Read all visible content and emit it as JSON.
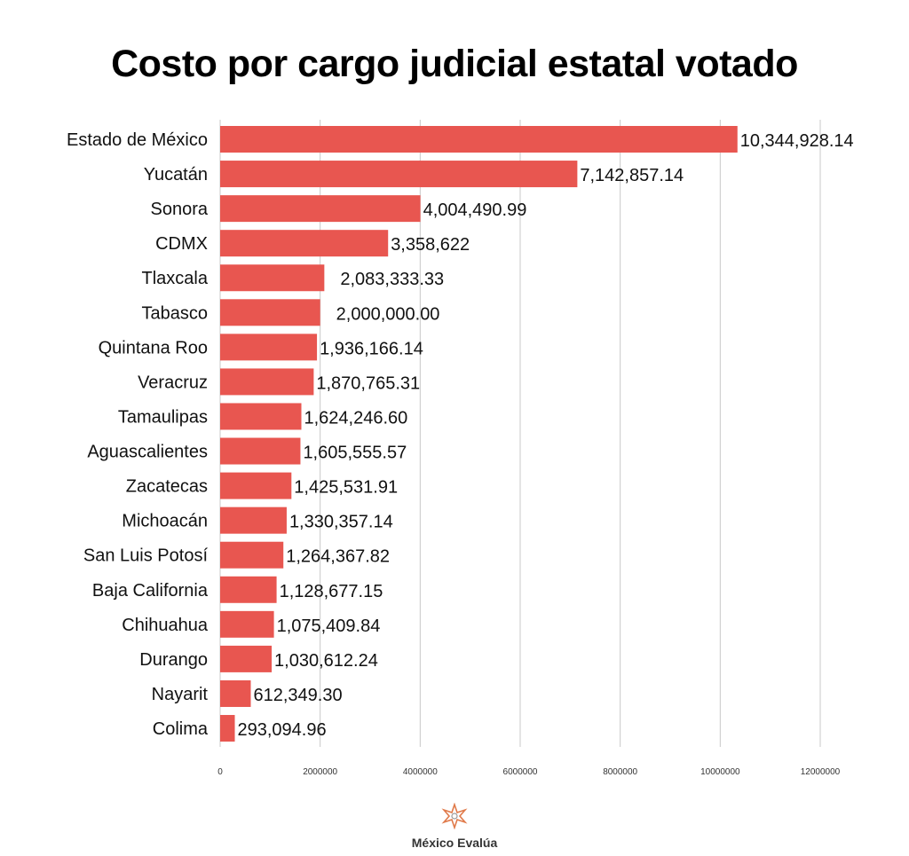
{
  "chart_data": {
    "type": "bar",
    "orientation": "horizontal",
    "title": "Costo por cargo judicial estatal votado",
    "categories": [
      "Estado de México",
      "Yucatán",
      "Sonora",
      "CDMX",
      "Tlaxcala",
      "Tabasco",
      "Quintana Roo",
      "Veracruz",
      "Tamaulipas",
      "Aguascalientes",
      "Zacatecas",
      "Michoacán",
      "San Luis Potosí",
      "Baja California",
      "Chihuahua",
      "Durango",
      "Nayarit",
      "Colima"
    ],
    "values": [
      10344928.14,
      7142857.14,
      4004490.99,
      3358622,
      2083333.33,
      2000000.0,
      1936166.14,
      1870765.31,
      1624246.6,
      1605555.57,
      1425531.91,
      1330357.14,
      1264367.82,
      1128677.15,
      1075409.84,
      1030612.24,
      612349.3,
      293094.96
    ],
    "value_labels": [
      "10,344,928.14",
      "7,142,857.14",
      "4,004,490.99",
      "3,358,622",
      "2,083,333.33",
      "2,000,000.00",
      "1,936,166.14",
      "1,870,765.31",
      "1,624,246.60",
      "1,605,555.57",
      "1,425,531.91",
      "1,330,357.14",
      "1,264,367.82",
      "1,128,677.15",
      "1,075,409.84",
      "1,030,612.24",
      "612,349.30",
      "293,094.96"
    ],
    "xticks": [
      0,
      2000000,
      4000000,
      6000000,
      8000000,
      10000000,
      12000000
    ],
    "xtick_labels": [
      "0",
      "2000000",
      "4000000",
      "6000000",
      "8000000",
      "10000000",
      "12000000"
    ],
    "xlim": [
      0,
      12000000
    ],
    "grid": true,
    "bar_color": "#e85650",
    "xlabel": "",
    "ylabel": ""
  },
  "footer": {
    "logo_text": "México Evalúa"
  }
}
